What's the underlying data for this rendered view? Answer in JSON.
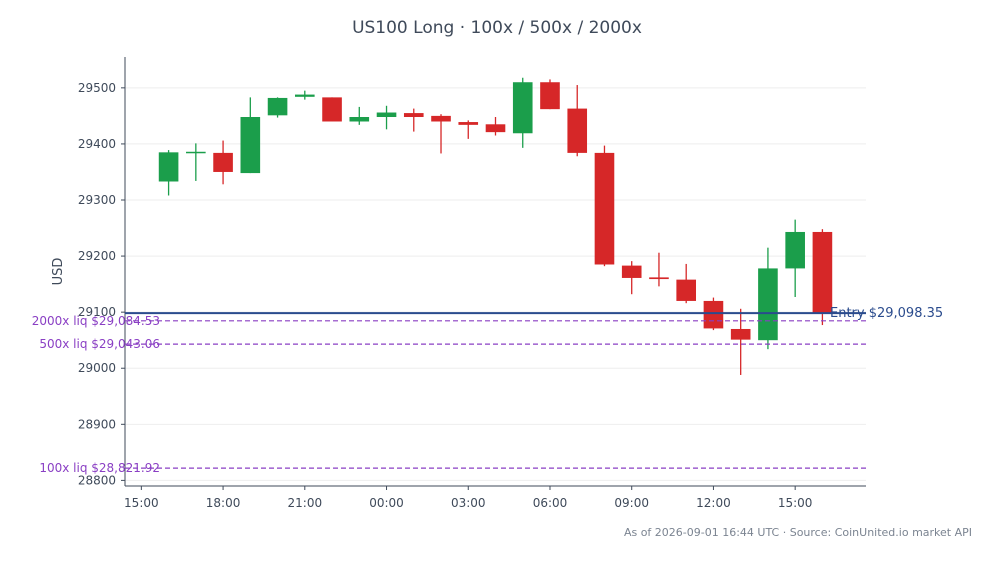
{
  "title": "US100 Long · 100x / 500x / 2000x",
  "footer": "As of 2026-09-01 16:44 UTC · Source: CoinUnited.io market API",
  "colors": {
    "up": "#1b9e4b",
    "down": "#d62728",
    "entry": "#2a4b8d",
    "liq": "#8a3fc4",
    "axis": "#3f4a5a",
    "grid": "#eeeeee",
    "text": "#3f4a5a"
  },
  "chart_data": {
    "type": "candlestick",
    "ylabel": "USD",
    "xlabel": "",
    "ylim": [
      28790,
      29555
    ],
    "x_range": [
      -0.6,
      26.6
    ],
    "yticks": [
      {
        "v": 28800,
        "label": "28800"
      },
      {
        "v": 28900,
        "label": "28900"
      },
      {
        "v": 29000,
        "label": "29000"
      },
      {
        "v": 29100,
        "label": "29100"
      },
      {
        "v": 29200,
        "label": "29200"
      },
      {
        "v": 29300,
        "label": "29300"
      },
      {
        "v": 29400,
        "label": "29400"
      },
      {
        "v": 29500,
        "label": "29500"
      }
    ],
    "xticks": [
      {
        "i": 0,
        "label": "15:00"
      },
      {
        "i": 3,
        "label": "18:00"
      },
      {
        "i": 6,
        "label": "21:00"
      },
      {
        "i": 9,
        "label": "00:00"
      },
      {
        "i": 12,
        "label": "03:00"
      },
      {
        "i": 15,
        "label": "06:00"
      },
      {
        "i": 18,
        "label": "09:00"
      },
      {
        "i": 21,
        "label": "12:00"
      },
      {
        "i": 24,
        "label": "15:00"
      }
    ],
    "candles": [
      {
        "i": 1,
        "o": 29333,
        "h": 29389,
        "l": 29308,
        "c": 29385
      },
      {
        "i": 2,
        "o": 29385,
        "h": 29401,
        "l": 29334,
        "c": 29386
      },
      {
        "i": 3,
        "o": 29384,
        "h": 29406,
        "l": 29328,
        "c": 29350
      },
      {
        "i": 4,
        "o": 29348,
        "h": 29483,
        "l": 29348,
        "c": 29448
      },
      {
        "i": 5,
        "o": 29451,
        "h": 29483,
        "l": 29447,
        "c": 29482
      },
      {
        "i": 6,
        "o": 29484,
        "h": 29495,
        "l": 29479,
        "c": 29488
      },
      {
        "i": 7,
        "o": 29483,
        "h": 29483,
        "l": 29440,
        "c": 29440
      },
      {
        "i": 8,
        "o": 29440,
        "h": 29466,
        "l": 29434,
        "c": 29448
      },
      {
        "i": 9,
        "o": 29448,
        "h": 29468,
        "l": 29426,
        "c": 29456
      },
      {
        "i": 10,
        "o": 29455,
        "h": 29463,
        "l": 29422,
        "c": 29448
      },
      {
        "i": 11,
        "o": 29450,
        "h": 29453,
        "l": 29383,
        "c": 29440
      },
      {
        "i": 12,
        "o": 29439,
        "h": 29442,
        "l": 29409,
        "c": 29434
      },
      {
        "i": 13,
        "o": 29435,
        "h": 29448,
        "l": 29415,
        "c": 29421
      },
      {
        "i": 14,
        "o": 29419,
        "h": 29518,
        "l": 29393,
        "c": 29510
      },
      {
        "i": 15,
        "o": 29510,
        "h": 29515,
        "l": 29462,
        "c": 29462
      },
      {
        "i": 16,
        "o": 29463,
        "h": 29505,
        "l": 29378,
        "c": 29384
      },
      {
        "i": 17,
        "o": 29384,
        "h": 29397,
        "l": 29182,
        "c": 29185
      },
      {
        "i": 18,
        "o": 29183,
        "h": 29191,
        "l": 29132,
        "c": 29161
      },
      {
        "i": 19,
        "o": 29162,
        "h": 29206,
        "l": 29146,
        "c": 29159
      },
      {
        "i": 20,
        "o": 29158,
        "h": 29186,
        "l": 29116,
        "c": 29120
      },
      {
        "i": 21,
        "o": 29120,
        "h": 29126,
        "l": 29068,
        "c": 29071
      },
      {
        "i": 22,
        "o": 29070,
        "h": 29106,
        "l": 28988,
        "c": 29051
      },
      {
        "i": 23,
        "o": 29050,
        "h": 29215,
        "l": 29034,
        "c": 29178
      },
      {
        "i": 24,
        "o": 29178,
        "h": 29265,
        "l": 29127,
        "c": 29243
      },
      {
        "i": 25,
        "o": 29243,
        "h": 29248,
        "l": 29077,
        "c": 29098
      }
    ],
    "lines": [
      {
        "kind": "entry",
        "value": 29098.35,
        "label": "Entry $29,098.35"
      },
      {
        "kind": "liq",
        "value": 29084.53,
        "label": "2000x liq $29,084.53"
      },
      {
        "kind": "liq",
        "value": 29043.06,
        "label": "500x liq $29,043.06"
      },
      {
        "kind": "liq",
        "value": 28821.92,
        "label": "100x liq $28,821.92"
      }
    ]
  }
}
